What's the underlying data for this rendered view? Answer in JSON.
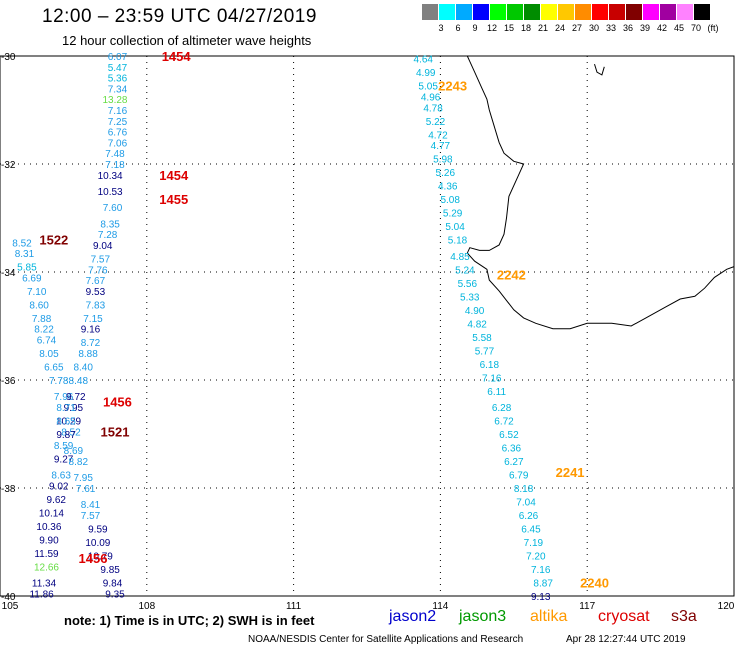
{
  "title": "12:00 – 23:59 UTC 04/27/2019",
  "subtitle": "12 hour collection of altimeter wave heights",
  "scale": {
    "labels": [
      "3",
      "6",
      "9",
      "12",
      "15",
      "18",
      "21",
      "24",
      "27",
      "30",
      "33",
      "36",
      "39",
      "42",
      "45",
      "70",
      "(ft)"
    ],
    "colors": [
      "#808080",
      "#00ffff",
      "#00aaff",
      "#0000ff",
      "#00ff00",
      "#00c800",
      "#008c00",
      "#ffff00",
      "#ffc800",
      "#ff8c00",
      "#ff0000",
      "#c80000",
      "#800000",
      "#ff00ff",
      "#a000a0",
      "#ff82ff",
      "#000000"
    ]
  },
  "map": {
    "lon_range": [
      105,
      120
    ],
    "lat_range": [
      -40,
      -30
    ],
    "lon_ticks": [
      "105",
      "108",
      "111",
      "114",
      "117",
      "120"
    ],
    "lat_ticks": [
      "-30",
      "-32",
      "-34",
      "-36",
      "-38",
      "-40"
    ],
    "track_colors": {
      "cyan": "#00b4dc",
      "lblue": "#1e9be6",
      "navy": "#000080",
      "lgreen": "#66dd44",
      "red": "#dd0000",
      "dkred": "#800000",
      "orange": "#ff9900",
      "coast": "#000000"
    },
    "time_labels": [
      {
        "text": "1454",
        "lon": 108.6,
        "lat": -30.0,
        "color": "red"
      },
      {
        "text": "1454",
        "lon": 108.55,
        "lat": -32.2,
        "color": "red"
      },
      {
        "text": "1455",
        "lon": 108.55,
        "lat": -32.65,
        "color": "red"
      },
      {
        "text": "1522",
        "lon": 106.1,
        "lat": -33.4,
        "color": "dkred"
      },
      {
        "text": "1456",
        "lon": 107.4,
        "lat": -36.4,
        "color": "red"
      },
      {
        "text": "1521",
        "lon": 107.35,
        "lat": -36.95,
        "color": "dkred"
      },
      {
        "text": "1456",
        "lon": 106.9,
        "lat": -39.3,
        "color": "red"
      },
      {
        "text": "2243",
        "lon": 114.25,
        "lat": -30.55,
        "color": "orange"
      },
      {
        "text": "2242",
        "lon": 115.45,
        "lat": -34.05,
        "color": "orange"
      },
      {
        "text": "2241",
        "lon": 116.65,
        "lat": -37.7,
        "color": "orange"
      },
      {
        "text": "2240",
        "lon": 117.15,
        "lat": -39.75,
        "color": "orange"
      }
    ],
    "swh_labels": [
      {
        "v": "6.07",
        "lon": 107.4,
        "lat": -30.0,
        "c": "lblue"
      },
      {
        "v": "5.47",
        "lon": 107.4,
        "lat": -30.2,
        "c": "cyan"
      },
      {
        "v": "5.36",
        "lon": 107.4,
        "lat": -30.4,
        "c": "cyan"
      },
      {
        "v": "7.34",
        "lon": 107.4,
        "lat": -30.6,
        "c": "lblue"
      },
      {
        "v": "13.28",
        "lon": 107.35,
        "lat": -30.8,
        "c": "lgreen"
      },
      {
        "v": "7.16",
        "lon": 107.4,
        "lat": -31.0,
        "c": "lblue"
      },
      {
        "v": "7.25",
        "lon": 107.4,
        "lat": -31.2,
        "c": "lblue"
      },
      {
        "v": "6.76",
        "lon": 107.4,
        "lat": -31.4,
        "c": "lblue"
      },
      {
        "v": "7.06",
        "lon": 107.4,
        "lat": -31.6,
        "c": "lblue"
      },
      {
        "v": "7.48",
        "lon": 107.35,
        "lat": -31.8,
        "c": "lblue"
      },
      {
        "v": "7.18",
        "lon": 107.35,
        "lat": -32.0,
        "c": "lblue"
      },
      {
        "v": "10.34",
        "lon": 107.25,
        "lat": -32.2,
        "c": "navy"
      },
      {
        "v": "10.53",
        "lon": 107.25,
        "lat": -32.5,
        "c": "navy"
      },
      {
        "v": "7.60",
        "lon": 107.3,
        "lat": -32.8,
        "c": "lblue"
      },
      {
        "v": "8.35",
        "lon": 107.25,
        "lat": -33.1,
        "c": "lblue"
      },
      {
        "v": "7.28",
        "lon": 107.2,
        "lat": -33.3,
        "c": "lblue"
      },
      {
        "v": "9.04",
        "lon": 107.1,
        "lat": -33.5,
        "c": "navy"
      },
      {
        "v": "8.52",
        "lon": 105.45,
        "lat": -33.45,
        "c": "lblue"
      },
      {
        "v": "8.31",
        "lon": 105.5,
        "lat": -33.65,
        "c": "lblue"
      },
      {
        "v": "5.85",
        "lon": 105.55,
        "lat": -33.9,
        "c": "cyan"
      },
      {
        "v": "7.57",
        "lon": 107.05,
        "lat": -33.75,
        "c": "lblue"
      },
      {
        "v": "7.76",
        "lon": 107.0,
        "lat": -33.95,
        "c": "lblue"
      },
      {
        "v": "6.69",
        "lon": 105.65,
        "lat": -34.1,
        "c": "lblue"
      },
      {
        "v": "7.67",
        "lon": 106.95,
        "lat": -34.15,
        "c": "lblue"
      },
      {
        "v": "7.10",
        "lon": 105.75,
        "lat": -34.35,
        "c": "lblue"
      },
      {
        "v": "9.53",
        "lon": 106.95,
        "lat": -34.35,
        "c": "navy"
      },
      {
        "v": "8.60",
        "lon": 105.8,
        "lat": -34.6,
        "c": "lblue"
      },
      {
        "v": "7.83",
        "lon": 106.95,
        "lat": -34.6,
        "c": "lblue"
      },
      {
        "v": "7.88",
        "lon": 105.85,
        "lat": -34.85,
        "c": "lblue"
      },
      {
        "v": "7.15",
        "lon": 106.9,
        "lat": -34.85,
        "c": "lblue"
      },
      {
        "v": "8.22",
        "lon": 105.9,
        "lat": -35.05,
        "c": "lblue"
      },
      {
        "v": "9.16",
        "lon": 106.85,
        "lat": -35.05,
        "c": "navy"
      },
      {
        "v": "6.74",
        "lon": 105.95,
        "lat": -35.25,
        "c": "lblue"
      },
      {
        "v": "8.72",
        "lon": 106.85,
        "lat": -35.3,
        "c": "lblue"
      },
      {
        "v": "8.05",
        "lon": 106.0,
        "lat": -35.5,
        "c": "lblue"
      },
      {
        "v": "8.88",
        "lon": 106.8,
        "lat": -35.5,
        "c": "lblue"
      },
      {
        "v": "6.65",
        "lon": 106.1,
        "lat": -35.75,
        "c": "lblue"
      },
      {
        "v": "8.40",
        "lon": 106.7,
        "lat": -35.75,
        "c": "lblue"
      },
      {
        "v": "7.78",
        "lon": 106.2,
        "lat": -36.0,
        "c": "lblue"
      },
      {
        "v": "8.48",
        "lon": 106.6,
        "lat": -36.0,
        "c": "lblue"
      },
      {
        "v": "7.96",
        "lon": 106.3,
        "lat": -36.3,
        "c": "lblue"
      },
      {
        "v": "9.72",
        "lon": 106.55,
        "lat": -36.3,
        "c": "navy"
      },
      {
        "v": "9.95",
        "lon": 106.5,
        "lat": -36.5,
        "c": "navy"
      },
      {
        "v": "8.71",
        "lon": 106.35,
        "lat": -36.5,
        "c": "lblue"
      },
      {
        "v": "10.29",
        "lon": 106.4,
        "lat": -36.75,
        "c": "navy"
      },
      {
        "v": "8.65",
        "lon": 106.35,
        "lat": -36.75,
        "c": "lblue"
      },
      {
        "v": "8.52",
        "lon": 106.45,
        "lat": -36.95,
        "c": "lblue"
      },
      {
        "v": "9.87",
        "lon": 106.35,
        "lat": -37.0,
        "c": "navy"
      },
      {
        "v": "8.59",
        "lon": 106.3,
        "lat": -37.2,
        "c": "lblue"
      },
      {
        "v": "8.69",
        "lon": 106.5,
        "lat": -37.3,
        "c": "lblue"
      },
      {
        "v": "9.27",
        "lon": 106.3,
        "lat": -37.45,
        "c": "navy"
      },
      {
        "v": "8.82",
        "lon": 106.6,
        "lat": -37.5,
        "c": "lblue"
      },
      {
        "v": "8.63",
        "lon": 106.25,
        "lat": -37.75,
        "c": "lblue"
      },
      {
        "v": "7.95",
        "lon": 106.7,
        "lat": -37.8,
        "c": "lblue"
      },
      {
        "v": "9.02",
        "lon": 106.2,
        "lat": -37.95,
        "c": "navy"
      },
      {
        "v": "7.61",
        "lon": 106.75,
        "lat": -38.0,
        "c": "lblue"
      },
      {
        "v": "9.62",
        "lon": 106.15,
        "lat": -38.2,
        "c": "navy"
      },
      {
        "v": "8.41",
        "lon": 106.85,
        "lat": -38.3,
        "c": "lblue"
      },
      {
        "v": "10.14",
        "lon": 106.05,
        "lat": -38.45,
        "c": "navy"
      },
      {
        "v": "7.57",
        "lon": 106.85,
        "lat": -38.5,
        "c": "lblue"
      },
      {
        "v": "10.36",
        "lon": 106.0,
        "lat": -38.7,
        "c": "navy"
      },
      {
        "v": "9.59",
        "lon": 107.0,
        "lat": -38.75,
        "c": "navy"
      },
      {
        "v": "9.90",
        "lon": 106.0,
        "lat": -38.95,
        "c": "navy"
      },
      {
        "v": "10.09",
        "lon": 107.0,
        "lat": -39.0,
        "c": "navy"
      },
      {
        "v": "11.59",
        "lon": 105.95,
        "lat": -39.2,
        "c": "navy"
      },
      {
        "v": "10.79",
        "lon": 107.05,
        "lat": -39.25,
        "c": "navy"
      },
      {
        "v": "12.66",
        "lon": 105.95,
        "lat": -39.45,
        "c": "lgreen"
      },
      {
        "v": "9.85",
        "lon": 107.25,
        "lat": -39.5,
        "c": "navy"
      },
      {
        "v": "11.34",
        "lon": 105.9,
        "lat": -39.75,
        "c": "navy"
      },
      {
        "v": "9.84",
        "lon": 107.3,
        "lat": -39.75,
        "c": "navy"
      },
      {
        "v": "11.86",
        "lon": 105.85,
        "lat": -39.95,
        "c": "navy"
      },
      {
        "v": "9.35",
        "lon": 107.35,
        "lat": -39.95,
        "c": "navy"
      },
      {
        "v": "4.64",
        "lon": 113.65,
        "lat": -30.05,
        "c": "cyan"
      },
      {
        "v": "4.99",
        "lon": 113.7,
        "lat": -30.3,
        "c": "cyan"
      },
      {
        "v": "5.05",
        "lon": 113.75,
        "lat": -30.55,
        "c": "cyan"
      },
      {
        "v": "4.96",
        "lon": 113.8,
        "lat": -30.75,
        "c": "cyan"
      },
      {
        "v": "4.78",
        "lon": 113.85,
        "lat": -30.95,
        "c": "cyan"
      },
      {
        "v": "5.22",
        "lon": 113.9,
        "lat": -31.2,
        "c": "cyan"
      },
      {
        "v": "4.72",
        "lon": 113.95,
        "lat": -31.45,
        "c": "cyan"
      },
      {
        "v": "4.77",
        "lon": 114.0,
        "lat": -31.65,
        "c": "cyan"
      },
      {
        "v": "5.98",
        "lon": 114.05,
        "lat": -31.9,
        "c": "cyan"
      },
      {
        "v": "5.26",
        "lon": 114.1,
        "lat": -32.15,
        "c": "cyan"
      },
      {
        "v": "4.36",
        "lon": 114.15,
        "lat": -32.4,
        "c": "cyan"
      },
      {
        "v": "5.08",
        "lon": 114.2,
        "lat": -32.65,
        "c": "cyan"
      },
      {
        "v": "5.29",
        "lon": 114.25,
        "lat": -32.9,
        "c": "cyan"
      },
      {
        "v": "5.04",
        "lon": 114.3,
        "lat": -33.15,
        "c": "cyan"
      },
      {
        "v": "5.18",
        "lon": 114.35,
        "lat": -33.4,
        "c": "cyan"
      },
      {
        "v": "4.85",
        "lon": 114.4,
        "lat": -33.7,
        "c": "cyan"
      },
      {
        "v": "5.24",
        "lon": 114.5,
        "lat": -33.95,
        "c": "cyan"
      },
      {
        "v": "5.56",
        "lon": 114.55,
        "lat": -34.2,
        "c": "cyan"
      },
      {
        "v": "5.33",
        "lon": 114.6,
        "lat": -34.45,
        "c": "cyan"
      },
      {
        "v": "4.90",
        "lon": 114.7,
        "lat": -34.7,
        "c": "cyan"
      },
      {
        "v": "4.82",
        "lon": 114.75,
        "lat": -34.95,
        "c": "cyan"
      },
      {
        "v": "5.58",
        "lon": 114.85,
        "lat": -35.2,
        "c": "cyan"
      },
      {
        "v": "5.77",
        "lon": 114.9,
        "lat": -35.45,
        "c": "cyan"
      },
      {
        "v": "6.18",
        "lon": 115.0,
        "lat": -35.7,
        "c": "cyan"
      },
      {
        "v": "7.16",
        "lon": 115.05,
        "lat": -35.95,
        "c": "cyan"
      },
      {
        "v": "6.11",
        "lon": 115.15,
        "lat": -36.2,
        "c": "cyan"
      },
      {
        "v": "6.28",
        "lon": 115.25,
        "lat": -36.5,
        "c": "cyan"
      },
      {
        "v": "6.72",
        "lon": 115.3,
        "lat": -36.75,
        "c": "cyan"
      },
      {
        "v": "6.52",
        "lon": 115.4,
        "lat": -37.0,
        "c": "cyan"
      },
      {
        "v": "6.36",
        "lon": 115.45,
        "lat": -37.25,
        "c": "cyan"
      },
      {
        "v": "6.27",
        "lon": 115.5,
        "lat": -37.5,
        "c": "cyan"
      },
      {
        "v": "6.79",
        "lon": 115.6,
        "lat": -37.75,
        "c": "cyan"
      },
      {
        "v": "8.18",
        "lon": 115.7,
        "lat": -38.0,
        "c": "cyan"
      },
      {
        "v": "7.04",
        "lon": 115.75,
        "lat": -38.25,
        "c": "cyan"
      },
      {
        "v": "6.26",
        "lon": 115.8,
        "lat": -38.5,
        "c": "cyan"
      },
      {
        "v": "6.45",
        "lon": 115.85,
        "lat": -38.75,
        "c": "cyan"
      },
      {
        "v": "7.19",
        "lon": 115.9,
        "lat": -39.0,
        "c": "cyan"
      },
      {
        "v": "7.20",
        "lon": 115.95,
        "lat": -39.25,
        "c": "cyan"
      },
      {
        "v": "7.16",
        "lon": 116.05,
        "lat": -39.5,
        "c": "cyan"
      },
      {
        "v": "8.87",
        "lon": 116.1,
        "lat": -39.75,
        "c": "cyan"
      },
      {
        "v": "9.13",
        "lon": 116.05,
        "lat": -40.0,
        "c": "navy"
      }
    ],
    "coastline": [
      [
        114.85,
        -30.6
      ],
      [
        114.95,
        -30.8
      ],
      [
        115.0,
        -31.0
      ],
      [
        115.1,
        -31.3
      ],
      [
        115.2,
        -31.6
      ],
      [
        115.3,
        -31.8
      ],
      [
        115.5,
        -31.95
      ],
      [
        115.7,
        -32.0
      ],
      [
        115.6,
        -32.2
      ],
      [
        115.4,
        -32.6
      ],
      [
        115.35,
        -33.0
      ],
      [
        115.3,
        -33.3
      ],
      [
        115.2,
        -33.5
      ],
      [
        115.0,
        -33.6
      ],
      [
        114.8,
        -33.6
      ],
      [
        114.6,
        -33.55
      ],
      [
        114.55,
        -33.65
      ],
      [
        114.7,
        -33.8
      ],
      [
        114.95,
        -33.95
      ],
      [
        115.0,
        -34.15
      ],
      [
        115.2,
        -34.35
      ],
      [
        115.5,
        -34.7
      ],
      [
        115.7,
        -34.85
      ],
      [
        115.95,
        -34.95
      ],
      [
        116.3,
        -35.05
      ],
      [
        116.65,
        -35.05
      ],
      [
        117.0,
        -34.95
      ],
      [
        117.5,
        -34.95
      ],
      [
        117.9,
        -35.0
      ],
      [
        118.2,
        -34.85
      ],
      [
        118.6,
        -34.65
      ],
      [
        118.9,
        -34.5
      ],
      [
        119.2,
        -34.45
      ],
      [
        119.4,
        -34.3
      ],
      [
        119.6,
        -34.1
      ],
      [
        119.85,
        -33.95
      ],
      [
        120.0,
        -33.9
      ]
    ],
    "coastline_north": [
      [
        114.55,
        -30.0
      ],
      [
        114.6,
        -30.1
      ],
      [
        114.7,
        -30.3
      ],
      [
        114.85,
        -30.6
      ]
    ],
    "island": [
      [
        117.15,
        -30.15
      ],
      [
        117.2,
        -30.3
      ],
      [
        117.3,
        -30.35
      ],
      [
        117.35,
        -30.2
      ]
    ]
  },
  "legend": {
    "note": "note:  1) Time is in UTC;  2) SWH is in feet",
    "sats": [
      {
        "name": "jason2",
        "color": "#0000cc"
      },
      {
        "name": "jason3",
        "color": "#009900"
      },
      {
        "name": "altika",
        "color": "#ff9900"
      },
      {
        "name": "cryosat",
        "color": "#dd0000"
      },
      {
        "name": "s3a",
        "color": "#800000"
      }
    ]
  },
  "credit": "NOAA/NESDIS Center for Satellite Applications and Research",
  "timestamp": "Apr 28 12:27:44 UTC 2019"
}
